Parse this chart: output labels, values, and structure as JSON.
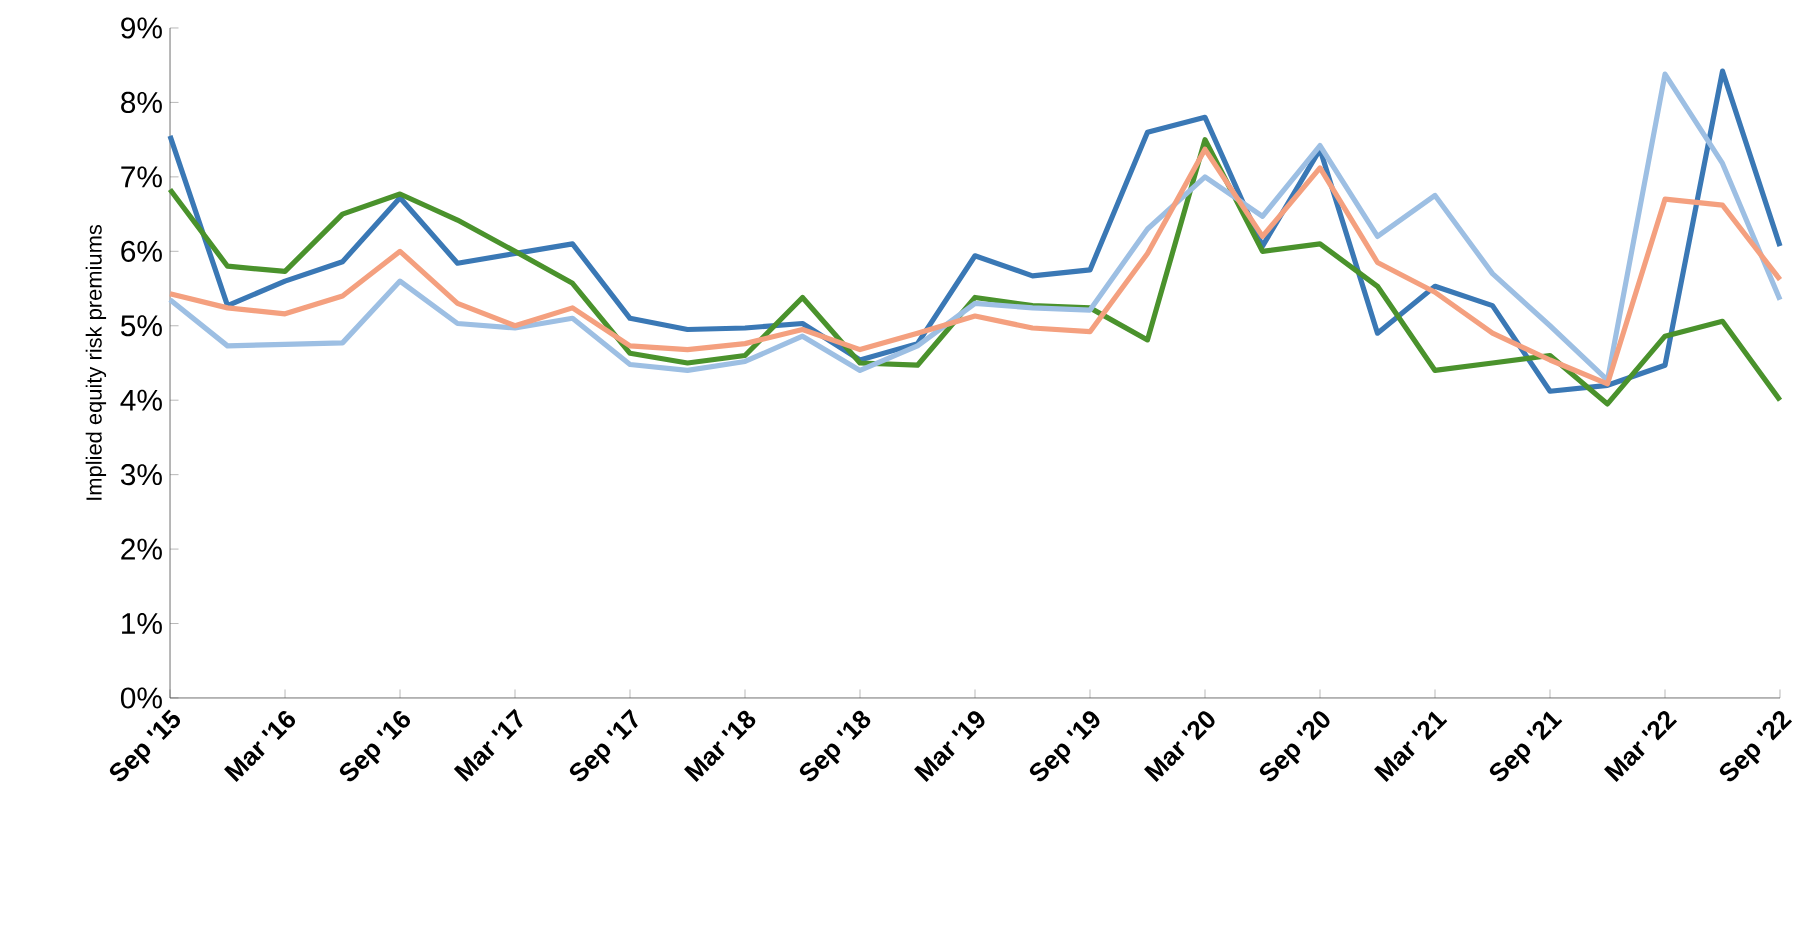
{
  "chart_data": {
    "type": "line",
    "ylabel": "Implied equity risk premiums",
    "x": [
      "2015-09",
      "2015-12",
      "2016-03",
      "2016-06",
      "2016-09",
      "2016-12",
      "2017-03",
      "2017-06",
      "2017-09",
      "2017-12",
      "2018-03",
      "2018-06",
      "2018-09",
      "2018-12",
      "2019-03",
      "2019-06",
      "2019-09",
      "2019-12",
      "2020-03",
      "2020-06",
      "2020-09",
      "2020-12",
      "2021-03",
      "2021-06",
      "2021-09",
      "2021-12",
      "2022-03",
      "2022-06",
      "2022-09"
    ],
    "series": [
      {
        "color": "#3a78b5",
        "values": [
          7.55,
          5.27,
          5.6,
          5.86,
          6.72,
          5.84,
          5.97,
          6.1,
          5.1,
          4.95,
          4.97,
          5.03,
          4.54,
          4.76,
          5.94,
          5.67,
          5.75,
          7.6,
          7.8,
          6.07,
          7.37,
          4.9,
          5.53,
          5.27,
          4.12,
          4.2,
          4.47,
          8.42,
          6.07
        ]
      },
      {
        "color": "#4a922c",
        "values": [
          6.83,
          5.8,
          5.73,
          6.5,
          6.77,
          6.42,
          6.0,
          5.57,
          4.63,
          4.5,
          4.6,
          5.38,
          4.5,
          4.47,
          5.38,
          5.27,
          5.24,
          4.81,
          7.5,
          6.0,
          6.1,
          5.53,
          4.4,
          4.5,
          4.6,
          3.95,
          4.86,
          5.06,
          4.0
        ]
      },
      {
        "color": "#9dbfe3",
        "values": [
          5.35,
          4.73,
          4.75,
          4.77,
          5.6,
          5.03,
          4.97,
          5.1,
          4.48,
          4.4,
          4.52,
          4.86,
          4.4,
          4.73,
          5.3,
          5.24,
          5.21,
          6.3,
          7.0,
          6.47,
          7.42,
          6.2,
          6.75,
          5.7,
          5.0,
          4.27,
          8.38,
          7.18,
          5.35
        ]
      },
      {
        "color": "#f4a07f",
        "values": [
          5.43,
          5.24,
          5.16,
          5.4,
          6.0,
          5.3,
          5.0,
          5.24,
          4.73,
          4.68,
          4.76,
          4.95,
          4.68,
          4.9,
          5.13,
          4.97,
          4.92,
          5.97,
          7.37,
          6.2,
          7.12,
          5.85,
          5.45,
          4.9,
          4.54,
          4.22,
          6.7,
          6.62,
          5.62
        ]
      }
    ],
    "xlim": [
      "2015-09",
      "2022-09"
    ],
    "xticks": [
      {
        "value": "2015-09",
        "label": "Sep '15"
      },
      {
        "value": "2016-03",
        "label": "Mar '16"
      },
      {
        "value": "2016-09",
        "label": "Sep '16"
      },
      {
        "value": "2017-03",
        "label": "Mar '17"
      },
      {
        "value": "2017-09",
        "label": "Sep '17"
      },
      {
        "value": "2018-03",
        "label": "Mar '18"
      },
      {
        "value": "2018-09",
        "label": "Sep '18"
      },
      {
        "value": "2019-03",
        "label": "Mar '19"
      },
      {
        "value": "2019-09",
        "label": "Sep '19"
      },
      {
        "value": "2020-03",
        "label": "Mar '20"
      },
      {
        "value": "2020-09",
        "label": "Sep '20"
      },
      {
        "value": "2021-03",
        "label": "Mar '21"
      },
      {
        "value": "2021-09",
        "label": "Sep '21"
      },
      {
        "value": "2022-03",
        "label": "Mar '22"
      },
      {
        "value": "2022-09",
        "label": "Sep '22"
      }
    ],
    "ylim": [
      0,
      9
    ],
    "yticks": [
      {
        "value": 0,
        "label": "0%"
      },
      {
        "value": 1,
        "label": "1%"
      },
      {
        "value": 2,
        "label": "2%"
      },
      {
        "value": 3,
        "label": "3%"
      },
      {
        "value": 4,
        "label": "4%"
      },
      {
        "value": 5,
        "label": "5%"
      },
      {
        "value": 6,
        "label": "6%"
      },
      {
        "value": 7,
        "label": "7%"
      },
      {
        "value": 8,
        "label": "8%"
      },
      {
        "value": 9,
        "label": "9%"
      }
    ],
    "grid": false,
    "marker": "none",
    "line_style": "solid"
  }
}
